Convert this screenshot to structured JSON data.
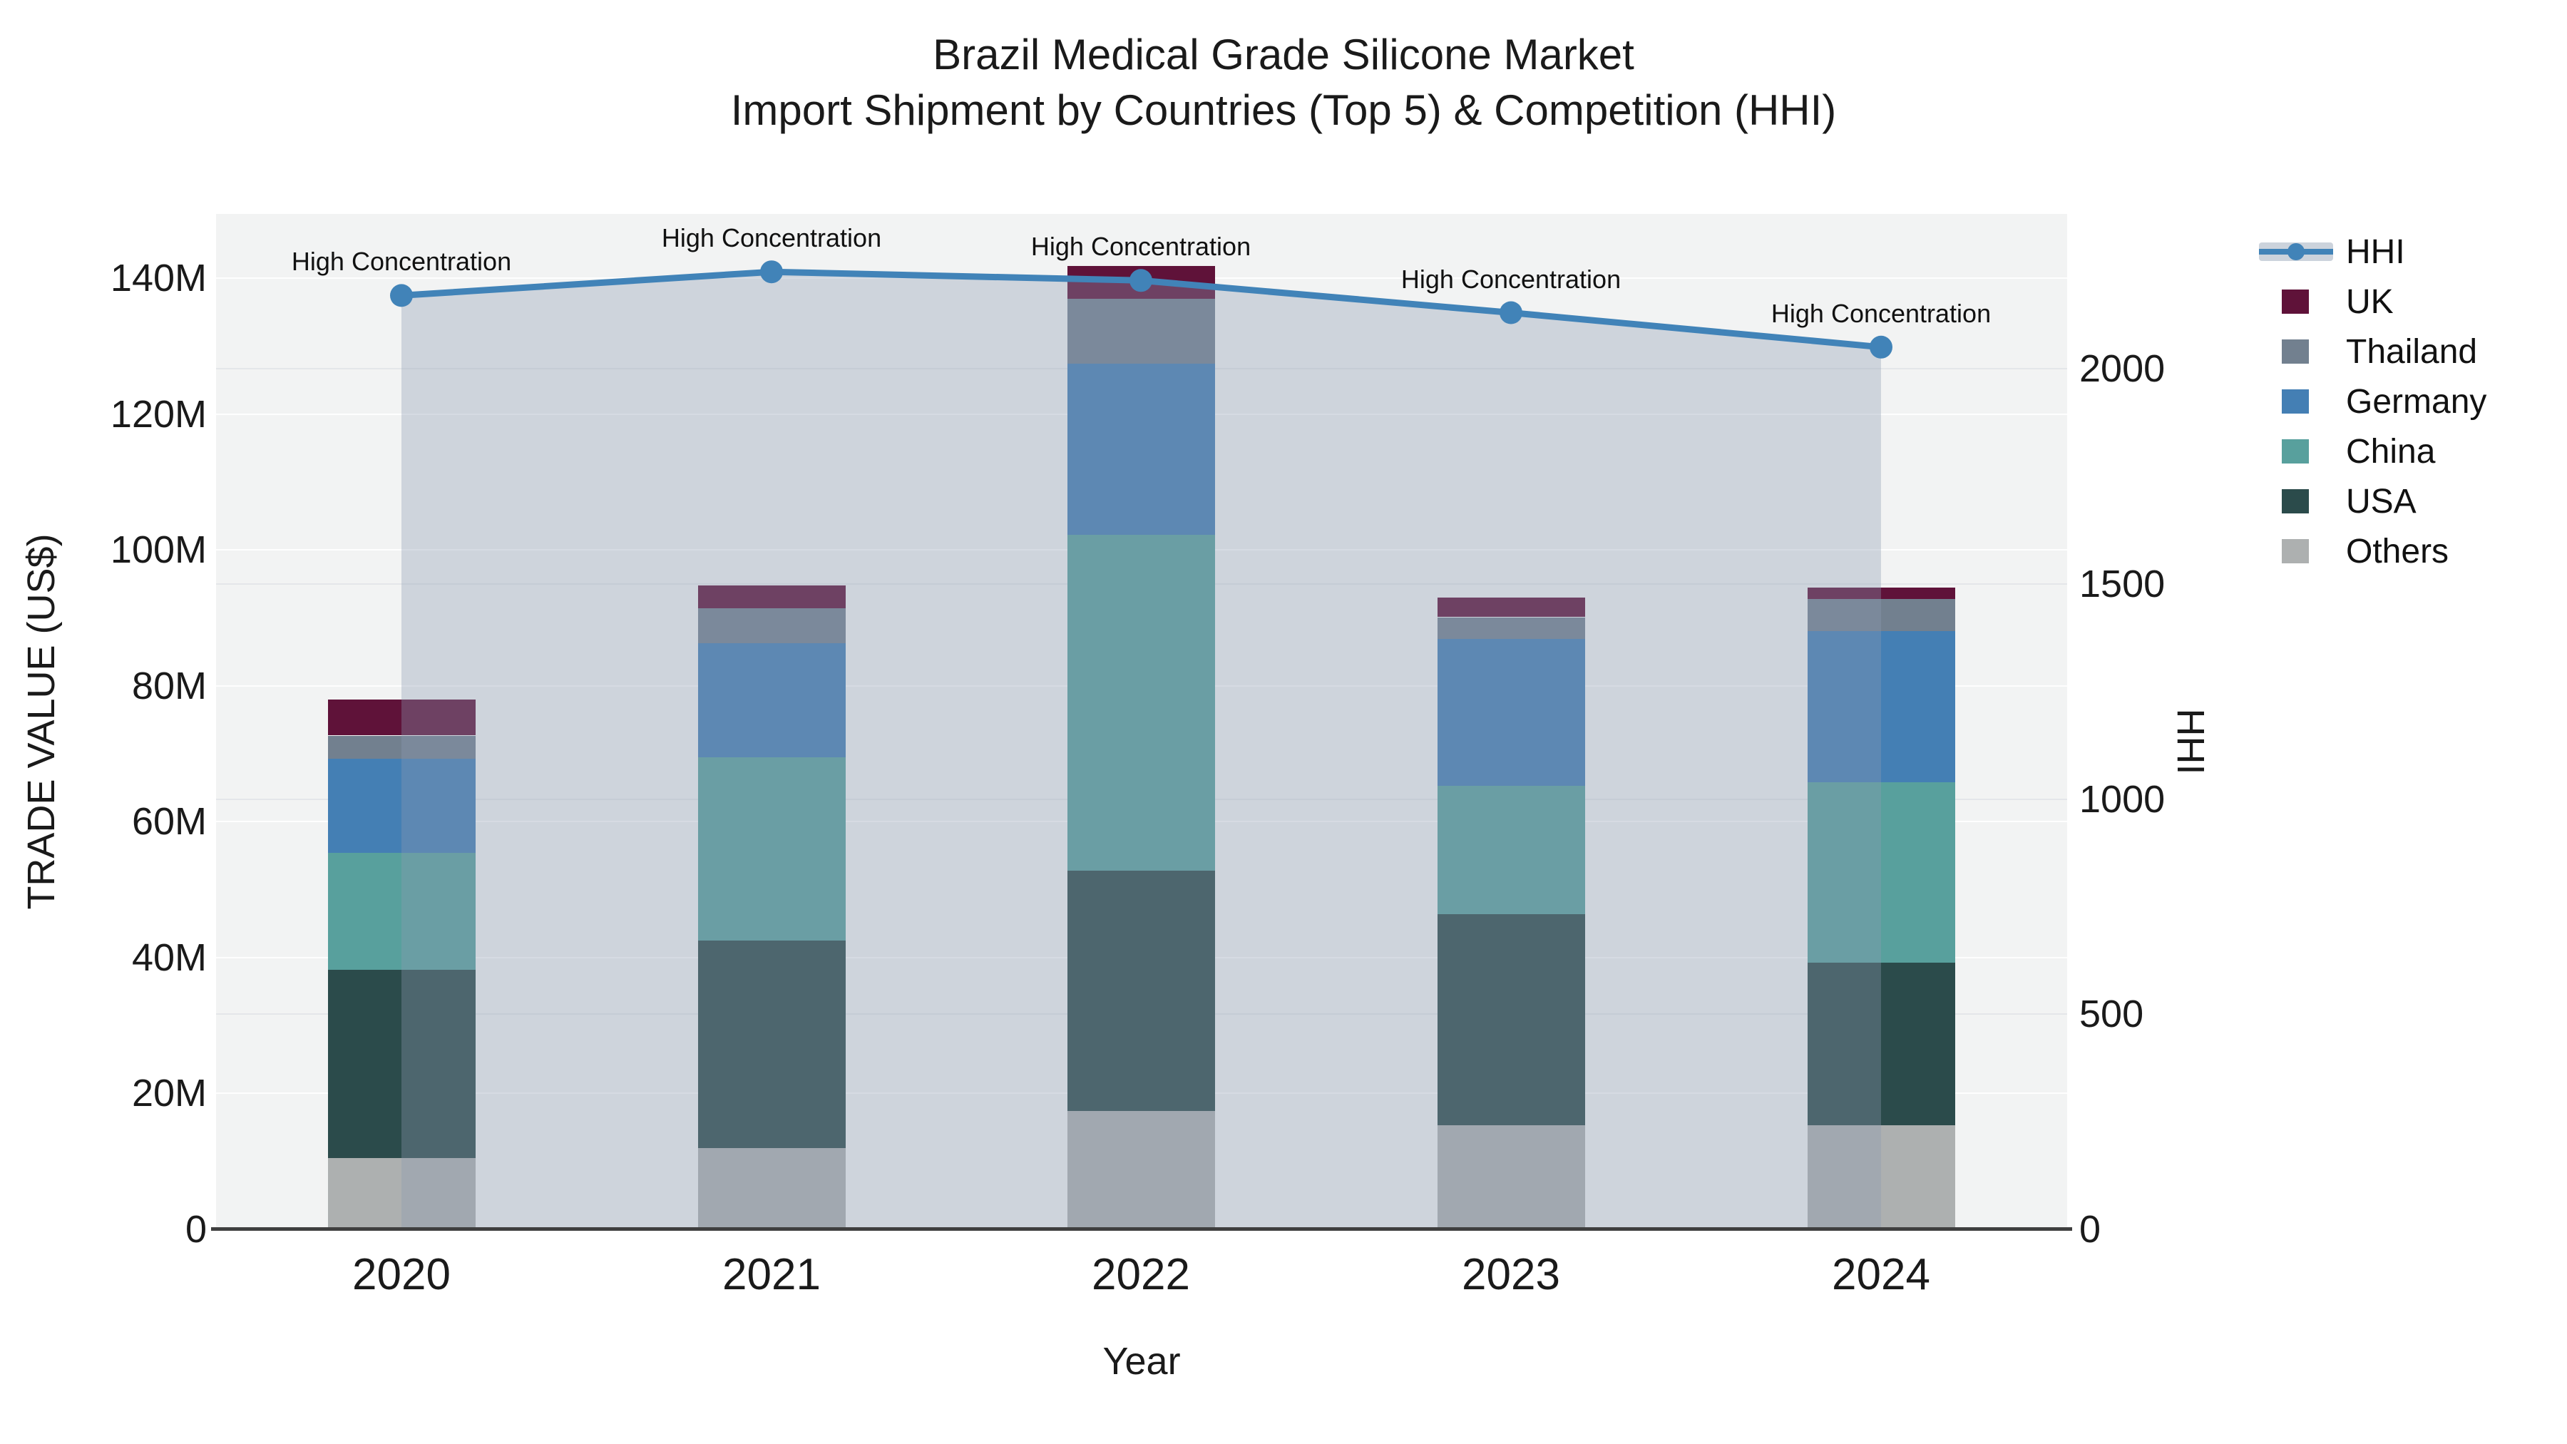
{
  "title": {
    "line1": "Brazil Medical Grade Silicone Market",
    "line2": "Import Shipment by Countries (Top 5) & Competition (HHI)"
  },
  "axes": {
    "x_label": "Year",
    "y_left_label": "TRADE VALUE (US$)",
    "y_right_label": "HHI",
    "y_left_ticks": [
      "0",
      "20M",
      "40M",
      "60M",
      "80M",
      "100M",
      "120M",
      "140M"
    ],
    "y_right_ticks": [
      "0",
      "500",
      "1000",
      "1500",
      "2000"
    ],
    "x_ticks": [
      "2020",
      "2021",
      "2022",
      "2023",
      "2024"
    ]
  },
  "legend": {
    "items": [
      {
        "label": "HHI",
        "type": "line",
        "color": "#4183B8"
      },
      {
        "label": "UK",
        "type": "swatch",
        "color": "#5F1239"
      },
      {
        "label": "Thailand",
        "type": "swatch",
        "color": "#72808F"
      },
      {
        "label": "Germany",
        "type": "swatch",
        "color": "#447FB4"
      },
      {
        "label": "China",
        "type": "swatch",
        "color": "#58A09D"
      },
      {
        "label": "USA",
        "type": "swatch",
        "color": "#2B4B4B"
      },
      {
        "label": "Others",
        "type": "swatch",
        "color": "#ADB0B0"
      }
    ]
  },
  "chart_data": {
    "type": "bar",
    "subtype": "stacked-bars-with-line-overlay",
    "title": "Brazil Medical Grade Silicone Market — Import Shipment by Countries (Top 5) & Competition (HHI)",
    "xlabel": "Year",
    "ylabel_left": "TRADE VALUE (US$)",
    "ylabel_right": "HHI",
    "categories": [
      "2020",
      "2021",
      "2022",
      "2023",
      "2024"
    ],
    "unit": "million US$",
    "series": [
      {
        "name": "Others",
        "color": "#ADB0B0",
        "values": [
          10.5,
          12.0,
          17.4,
          15.3,
          15.3
        ]
      },
      {
        "name": "USA",
        "color": "#2B4B4B",
        "values": [
          27.7,
          30.5,
          35.4,
          31.1,
          24.0
        ]
      },
      {
        "name": "China",
        "color": "#58A09D",
        "values": [
          17.2,
          27.0,
          49.4,
          18.9,
          26.5
        ]
      },
      {
        "name": "Germany",
        "color": "#447FB4",
        "values": [
          13.9,
          16.8,
          25.2,
          21.6,
          22.2
        ]
      },
      {
        "name": "Thailand",
        "color": "#72808F",
        "values": [
          3.4,
          5.1,
          9.6,
          3.2,
          4.8
        ]
      },
      {
        "name": "UK",
        "color": "#5F1239",
        "values": [
          5.2,
          3.4,
          4.8,
          2.8,
          1.7
        ]
      }
    ],
    "bar_totals": [
      77.9,
      94.8,
      141.8,
      92.9,
      94.5
    ],
    "line_series": {
      "name": "HHI",
      "color": "#4183B8",
      "area_fill": "rgba(140,155,178,0.35)",
      "values": [
        2170,
        2225,
        2205,
        2130,
        2050
      ]
    },
    "annotations": [
      "High Concentration",
      "High Concentration",
      "High Concentration",
      "High Concentration",
      "High Concentration"
    ],
    "ylim_left": [
      0,
      147
    ],
    "ylim_right": [
      0,
      2360
    ],
    "y_left_tick_values": [
      0,
      20,
      40,
      60,
      80,
      100,
      120,
      140
    ],
    "y_right_tick_values": [
      0,
      500,
      1000,
      1500,
      2000
    ],
    "grid": true,
    "legend_position": "right",
    "plot_background": "#f2f3f3"
  }
}
